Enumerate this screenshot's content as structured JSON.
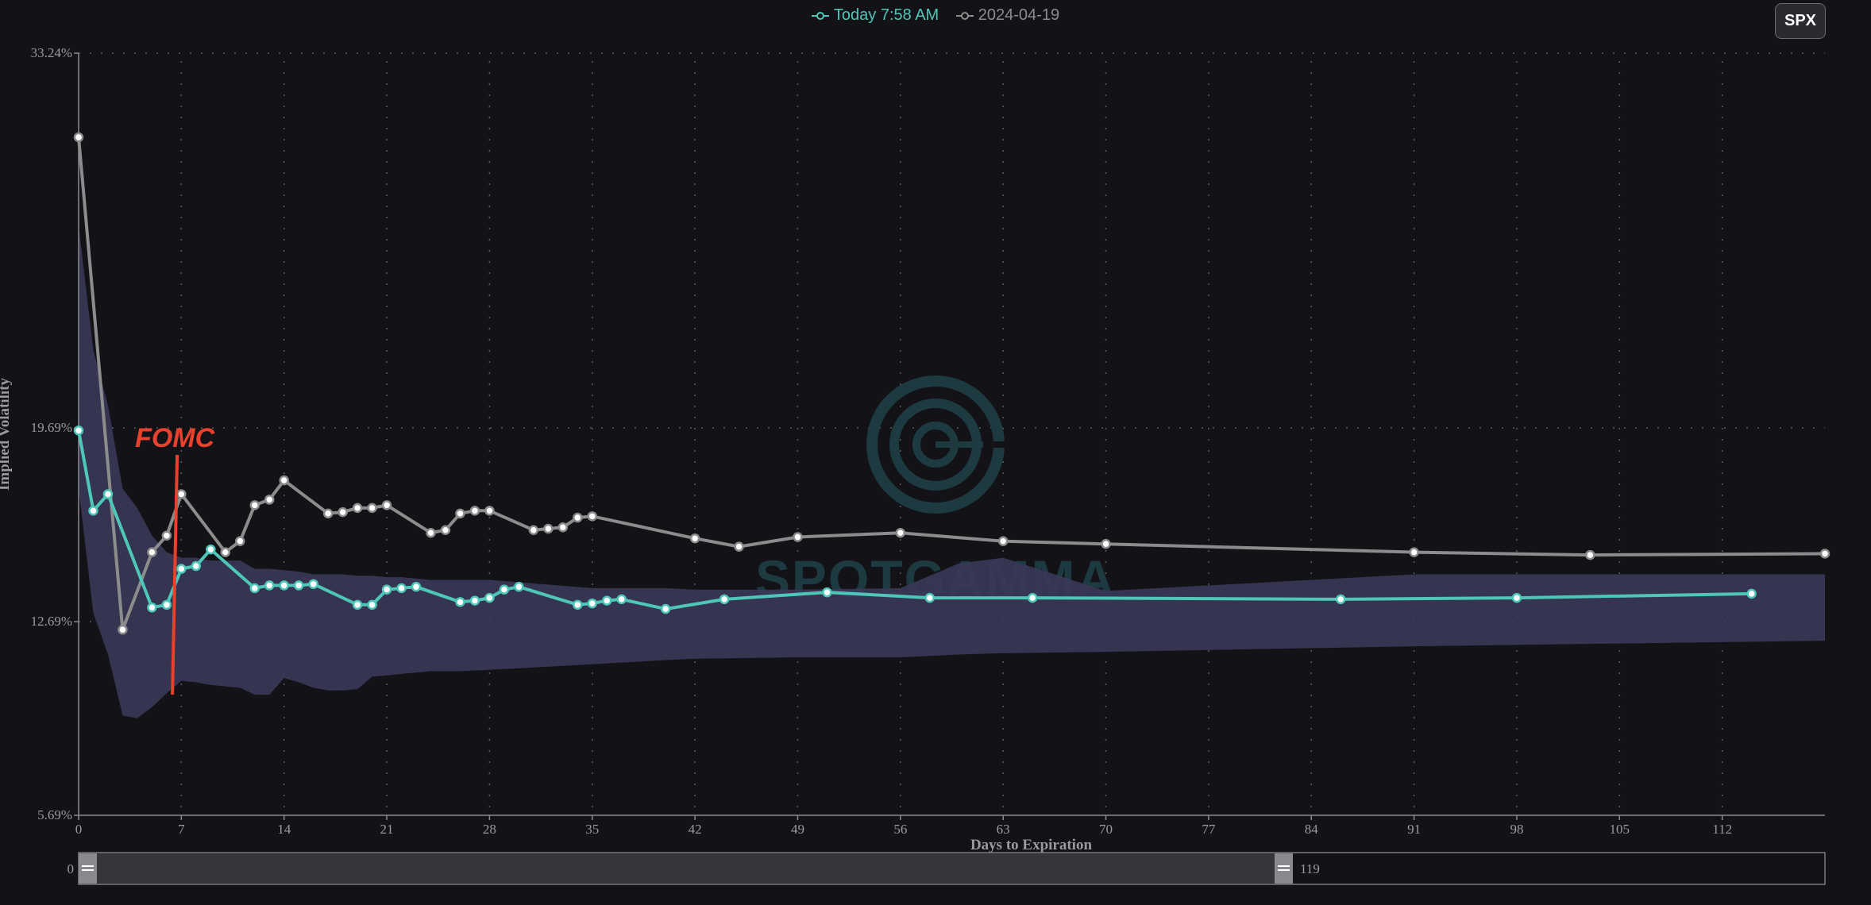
{
  "legend": {
    "today_label": "Today 7:58 AM",
    "prior_label": "2024-04-19"
  },
  "symbol_button": "SPX",
  "annotation": {
    "label": "FOMC",
    "x": 6.5
  },
  "watermark": "SPOTGAMMA",
  "slider": {
    "min_label": "0",
    "max_label": "119"
  },
  "colors": {
    "today": "#4ec6b8",
    "prior": "#8c8c8c",
    "band": "#3a3858",
    "fomc": "#e8412e",
    "background": "#131317"
  },
  "chart_data": {
    "type": "line",
    "xlabel": "Days to Expiration",
    "ylabel": "Implied Volatility",
    "xlim": [
      0,
      119
    ],
    "ylim": [
      5.69,
      33.24
    ],
    "xticks": [
      0,
      7,
      14,
      21,
      28,
      35,
      42,
      49,
      56,
      63,
      70,
      77,
      84,
      91,
      98,
      105,
      112
    ],
    "yticks": [
      5.69,
      12.69,
      19.69,
      33.24
    ],
    "ytick_labels": [
      "5.69%",
      "12.69%",
      "19.69%",
      "33.24%"
    ],
    "grid": true,
    "legend_position": "top-center",
    "series": [
      {
        "name": "Today 7:58 AM",
        "x": [
          0,
          1,
          2,
          5,
          6,
          7,
          8,
          9,
          12,
          13,
          14,
          15,
          16,
          19,
          20,
          21,
          22,
          23,
          26,
          27,
          28,
          29,
          30,
          34,
          35,
          36,
          37,
          40,
          44,
          51,
          58,
          65,
          86,
          98,
          114
        ],
        "y": [
          19.6,
          16.7,
          17.3,
          13.2,
          13.3,
          14.6,
          14.7,
          15.3,
          13.9,
          14.0,
          14.0,
          14.0,
          14.05,
          13.3,
          13.3,
          13.85,
          13.9,
          13.95,
          13.4,
          13.45,
          13.55,
          13.85,
          13.95,
          13.3,
          13.35,
          13.45,
          13.5,
          13.15,
          13.5,
          13.75,
          13.55,
          13.55,
          13.5,
          13.55,
          13.7
        ]
      },
      {
        "name": "2024-04-19",
        "x": [
          0,
          3,
          5,
          6,
          7,
          10,
          11,
          12,
          13,
          14,
          17,
          18,
          19,
          20,
          21,
          24,
          25,
          26,
          27,
          28,
          31,
          32,
          33,
          34,
          35,
          42,
          45,
          49,
          56,
          63,
          70,
          91,
          103,
          119
        ],
        "y": [
          30.2,
          12.4,
          15.2,
          15.8,
          17.3,
          15.2,
          15.6,
          16.9,
          17.1,
          17.8,
          16.6,
          16.65,
          16.8,
          16.8,
          16.9,
          15.9,
          16.0,
          16.6,
          16.7,
          16.7,
          16.0,
          16.05,
          16.1,
          16.45,
          16.5,
          15.7,
          15.4,
          15.75,
          15.9,
          15.6,
          15.5,
          15.2,
          15.1,
          15.15
        ]
      }
    ],
    "band": {
      "x": [
        0,
        1,
        2,
        3,
        4,
        5,
        6,
        7,
        8,
        9,
        10,
        11,
        12,
        13,
        14,
        15,
        16,
        17,
        18,
        19,
        20,
        21,
        22,
        23,
        24,
        26,
        28,
        35,
        40,
        42,
        49,
        56,
        60,
        63,
        70,
        91,
        119
      ],
      "upper": [
        27.0,
        22.5,
        20.5,
        17.5,
        16.8,
        15.8,
        15.2,
        15.0,
        15.0,
        14.9,
        14.9,
        14.9,
        14.6,
        14.6,
        14.55,
        14.5,
        14.4,
        14.4,
        14.4,
        14.35,
        14.35,
        14.3,
        14.3,
        14.25,
        14.2,
        14.2,
        14.2,
        13.9,
        13.9,
        13.85,
        13.85,
        13.9,
        14.8,
        15.0,
        13.8,
        14.4,
        14.4
      ],
      "lower": [
        17.5,
        13.0,
        11.5,
        9.3,
        9.2,
        9.6,
        10.1,
        10.55,
        10.5,
        10.4,
        10.35,
        10.3,
        10.05,
        10.05,
        10.65,
        10.5,
        10.3,
        10.2,
        10.2,
        10.25,
        10.7,
        10.75,
        10.8,
        10.85,
        10.9,
        10.9,
        10.95,
        11.15,
        11.3,
        11.35,
        11.4,
        11.4,
        11.5,
        11.55,
        11.6,
        11.8,
        12.0
      ]
    }
  }
}
